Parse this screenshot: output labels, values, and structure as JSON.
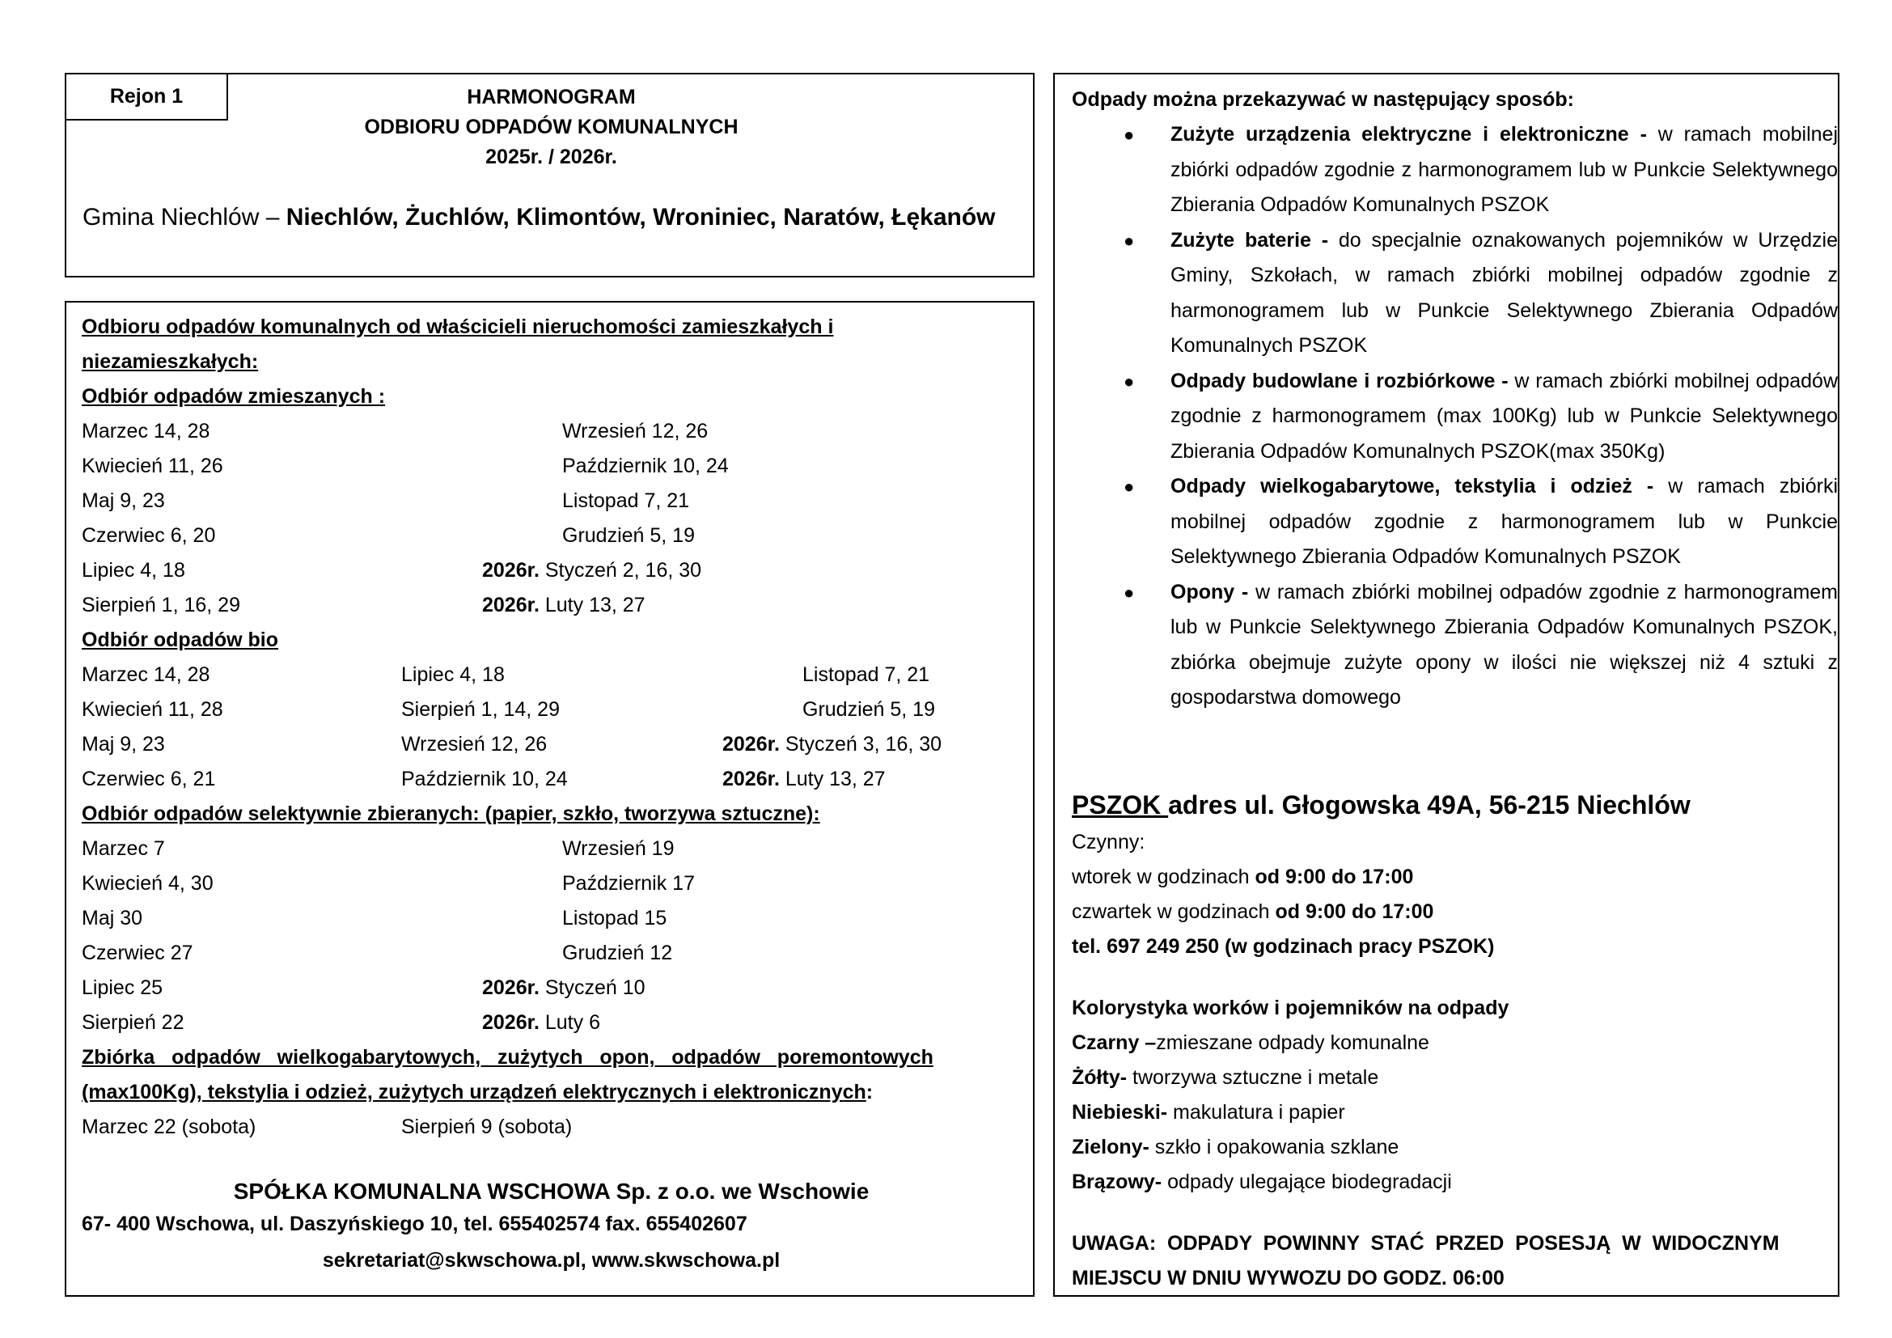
{
  "header": {
    "region": "Rejon 1",
    "title_lines": [
      "HARMONOGRAM",
      "ODBIORU ODPADÓW KOMUNALNYCH",
      "2025r. / 2026r."
    ],
    "gmina_prefix": "Gmina Niechlów – ",
    "gmina_places": "Niechlów, Żuchlów, Klimontów, Wroniniec, Naratów, Łękanów"
  },
  "schedule": {
    "intro_line1": "Odbioru odpadów komunalnych od właścicieli nieruchomości zamieszkałych i",
    "intro_line2": "niezamieszkałych:",
    "mixed": {
      "heading": "Odbiór odpadów zmieszanych :",
      "rows": [
        {
          "left": "Marzec  14, 28",
          "year": "",
          "right": "Wrzesień 12, 26"
        },
        {
          "left": "Kwiecień 11, 26",
          "year": "",
          "right": "Październik 10, 24"
        },
        {
          "left": "Maj 9, 23",
          "year": "",
          "right": "Listopad 7, 21"
        },
        {
          "left": "Czerwiec 6, 20",
          "year": "",
          "right": "Grudzień 5, 19"
        },
        {
          "left": "Lipiec 4, 18",
          "year": "2026r.",
          "right": " Styczeń 2, 16, 30"
        },
        {
          "left": "Sierpień 1, 16, 29",
          "year": "2026r.",
          "right": " Luty 13, 27"
        }
      ]
    },
    "bio": {
      "heading": "Odbiór odpadów bio",
      "rows": [
        {
          "c1": "Marzec 14, 28",
          "c2": "Lipiec 4, 18",
          "year": "",
          "c3": "Listopad 7, 21"
        },
        {
          "c1": "Kwiecień 11, 28",
          "c2": "Sierpień 1, 14, 29",
          "year": "",
          "c3": "Grudzień 5, 19"
        },
        {
          "c1": "Maj 9, 23",
          "c2": "Wrzesień 12, 26",
          "year": "2026r.",
          "c3": " Styczeń 3, 16, 30"
        },
        {
          "c1": "Czerwiec 6, 21",
          "c2": "Październik 10, 24",
          "year": "2026r.",
          "c3": " Luty 13, 27"
        }
      ]
    },
    "selective": {
      "heading": "Odbiór odpadów selektywnie zbieranych: (papier, szkło, tworzywa sztuczne):",
      "rows": [
        {
          "left": "Marzec 7",
          "year": "",
          "right": "Wrzesień 19"
        },
        {
          "left": "Kwiecień 4, 30",
          "year": "",
          "right": "Październik 17"
        },
        {
          "left": "Maj 30",
          "year": "",
          "right": "Listopad 15"
        },
        {
          "left": "Czerwiec  27",
          "year": "",
          "right": "Grudzień 12"
        },
        {
          "left": "Lipiec 25",
          "year": "2026r.",
          "right": " Styczeń 10"
        },
        {
          "left": "Sierpień 22",
          "year": "2026r.",
          "right": " Luty 6"
        }
      ]
    },
    "bulky": {
      "heading_line1": "Zbiórka   odpadów   wielkogabarytowych,   zużytych   opon,   odpadów   poremontowych",
      "heading_line2": "(max100Kg), tekstylia i odzież, zużytych urządzeń elektrycznych i elektronicznych",
      "heading_colon": ":",
      "dates": [
        "Marzec 22 (sobota)",
        "Sierpień 9 (sobota)"
      ]
    },
    "company": {
      "name": "SPÓŁKA KOMUNALNA WSCHOWA Sp. z o.o. we Wschowie",
      "address": "67- 400 Wschowa, ul. Daszyńskiego 10, tel. 655402574 fax. 655402607",
      "contact": "sekretariat@skwschowa.pl, www.skwschowa.pl"
    }
  },
  "info": {
    "heading": "Odpady można przekazywać w następujący sposób:",
    "items": [
      {
        "bold": "Zużyte urządzenia elektryczne i elektroniczne -",
        "text": " w ramach mobilnej zbiórki odpadów zgodnie z harmonogramem lub w Punkcie Selektywnego Zbierania Odpadów Komunalnych PSZOK"
      },
      {
        "bold": "Zużyte baterie -",
        "text": " do specjalnie oznakowanych pojemników w Urzędzie Gminy, Szkołach, w ramach zbiórki mobilnej odpadów zgodnie z harmonogramem lub w Punkcie Selektywnego Zbierania Odpadów Komunalnych PSZOK"
      },
      {
        "bold": "Odpady budowlane i rozbiórkowe -",
        "text": " w ramach zbiórki mobilnej odpadów zgodnie z harmonogramem (max 100Kg) lub   w Punkcie Selektywnego Zbierania Odpadów Komunalnych PSZOK(max 350Kg)"
      },
      {
        "bold": "Odpady wielkogabarytowe, tekstylia i odzież -",
        "text": " w ramach zbiórki mobilnej odpadów zgodnie z harmonogramem lub w Punkcie Selektywnego Zbierania Odpadów Komunalnych PSZOK"
      },
      {
        "bold": "Opony -",
        "text": " w ramach zbiórki mobilnej odpadów zgodnie z harmonogramem lub w Punkcie Selektywnego Zbierania Odpadów Komunalnych PSZOK, zbiórka obejmuje zużyte opony w ilości nie większej niż 4 sztuki  z gospodarstwa domowego"
      }
    ],
    "pszok": {
      "label": "PSZOK ",
      "address": "adres ul. Głogowska 49A, 56-215 Niechlów",
      "open_label": "Czynny:",
      "hours": [
        {
          "day": "wtorek  w godzinach ",
          "time": "od 9:00  do 17:00"
        },
        {
          "day": "czwartek w godzinach ",
          "time": "od 9:00  do 17:00"
        }
      ],
      "phone": "tel. 697 249 250 (w godzinach pracy PSZOK)"
    },
    "colors": {
      "heading": "Kolorystyka worków i pojemników na odpady",
      "items": [
        {
          "color": "Czarny –",
          "desc": "zmieszane odpady komunalne"
        },
        {
          "color": "Żółty-",
          "desc": " tworzywa sztuczne i metale"
        },
        {
          "color": "Niebieski-",
          "desc": " makulatura i papier"
        },
        {
          "color": "Zielony-",
          "desc": " szkło i opakowania szklane"
        },
        {
          "color": "Brązowy-",
          "desc": " odpady ulegające biodegradacji"
        }
      ]
    },
    "warning_line1": "UWAGA:  ODPADY  POWINNY  STAĆ  PRZED  POSESJĄ  W  WIDOCZNYM",
    "warning_line2": "MIEJSCU W DNIU WYWOZU DO GODZ. 06:00"
  }
}
